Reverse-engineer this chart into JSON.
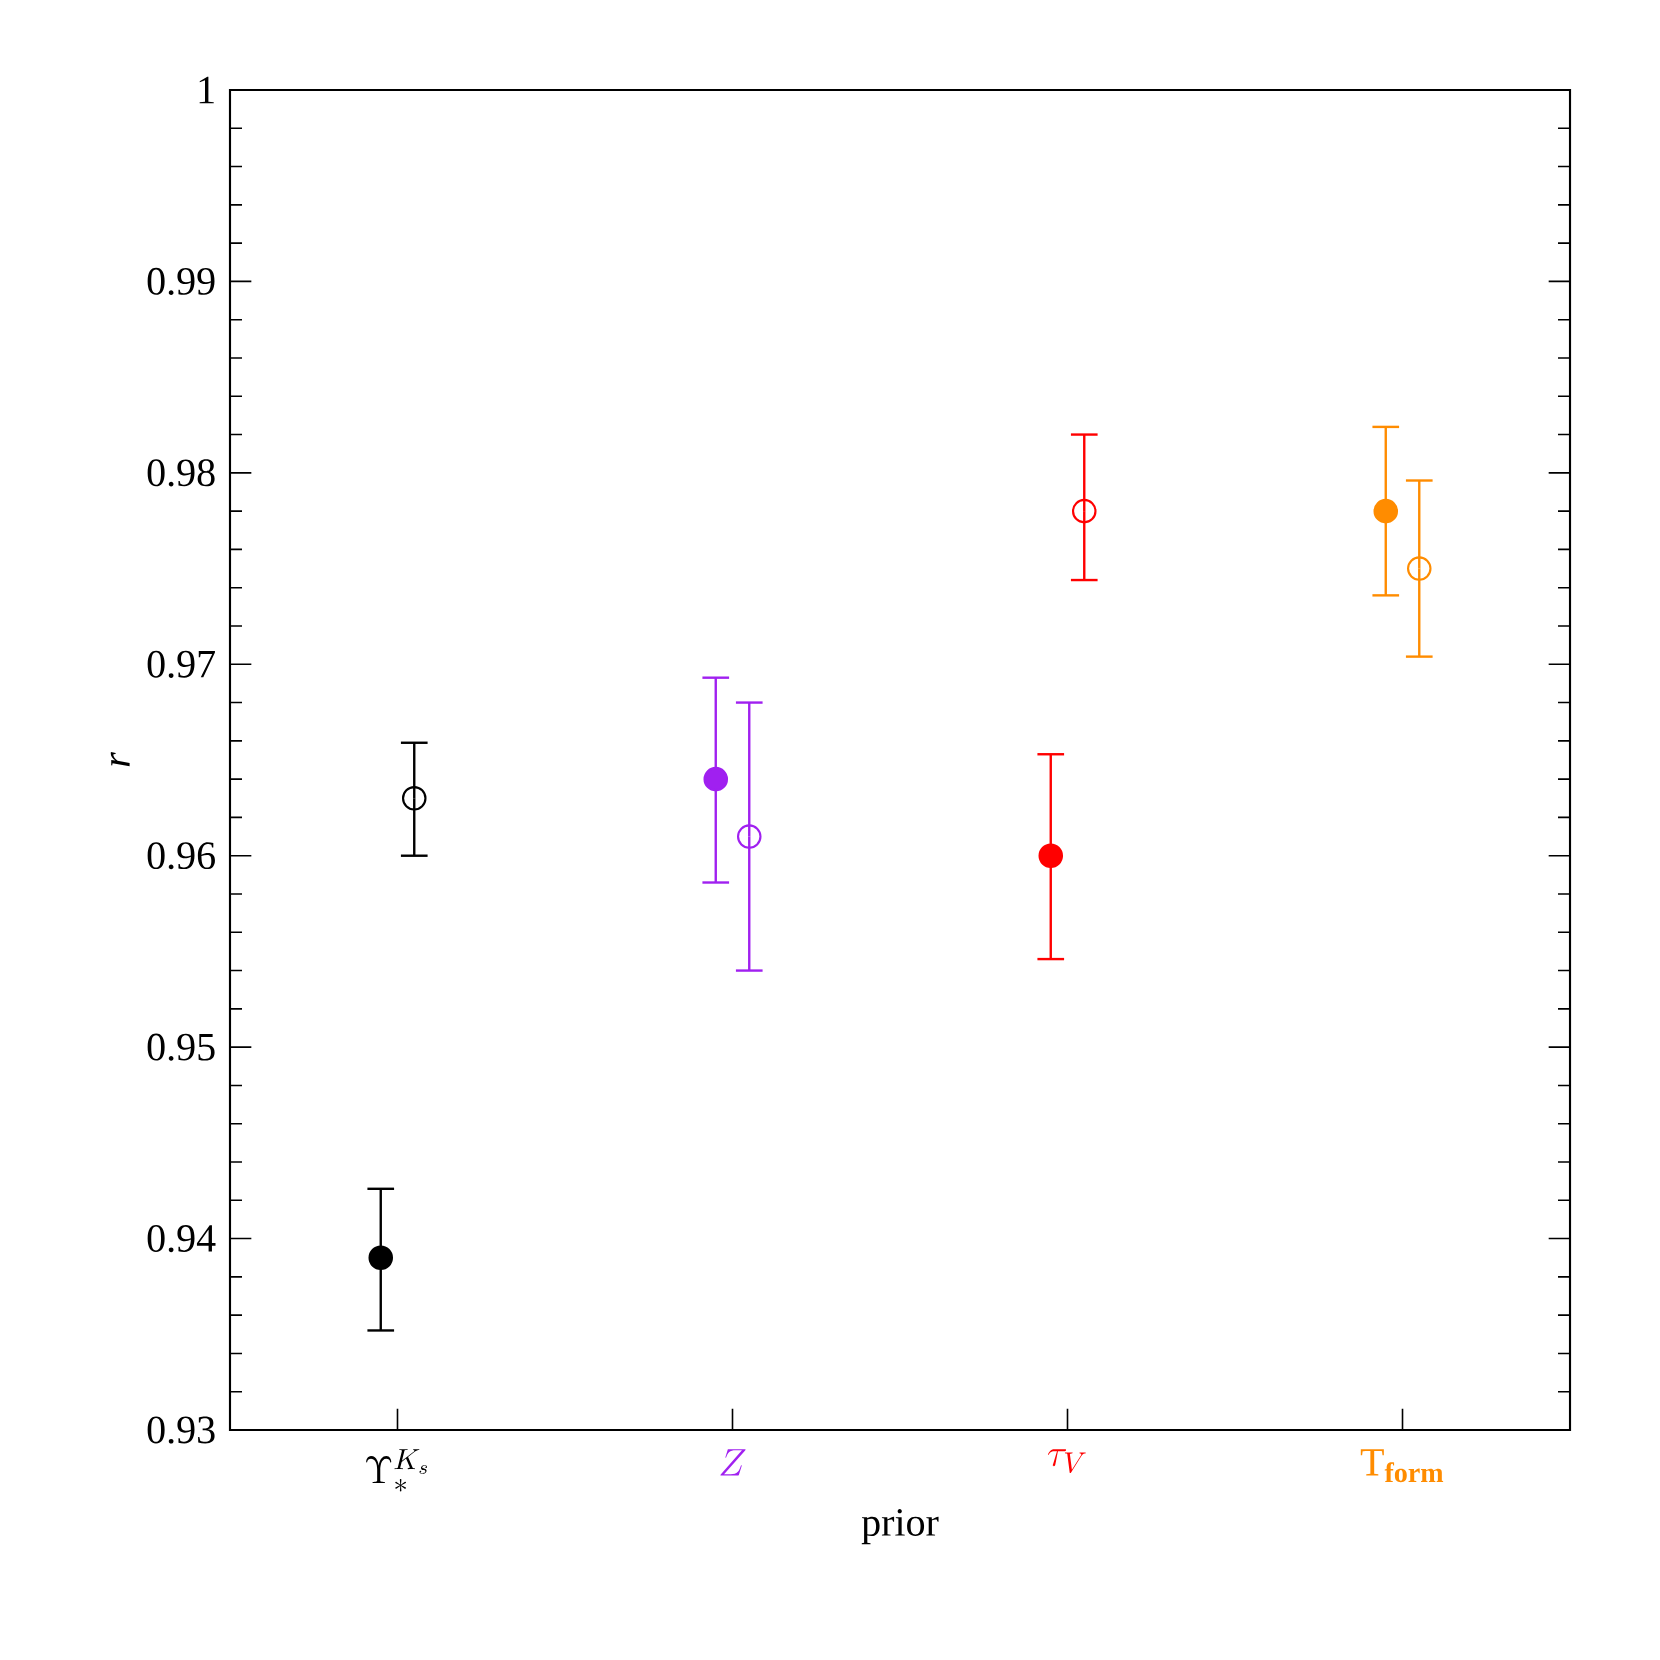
{
  "chart_data": {
    "type": "scatter",
    "xlabel": "prior",
    "ylabel": "r",
    "categories": [
      "\\Upsilon_{*}^{K_s}",
      "Z",
      "\\tau_{V}",
      "\\mathrm{T}_{\\mathbf{form}}"
    ],
    "ylim": [
      0.93,
      1
    ],
    "yticks": [
      0.93,
      0.94,
      0.95,
      0.96,
      0.97,
      0.98,
      0.99,
      1
    ],
    "marker": "circle",
    "series": [
      {
        "colors": [
          "#000000",
          "#a020f0",
          "#ff0000",
          "#ff8c00"
        ],
        "values": [
          0.939,
          0.964,
          0.96,
          0.978
        ],
        "errors": [
          [
            0.9352,
            0.9426
          ],
          [
            0.9586,
            0.9693
          ],
          [
            0.9546,
            0.9653
          ],
          [
            0.9736,
            0.9824
          ]
        ]
      },
      {
        "colors": [
          "#000000",
          "#a020f0",
          "#ff0000",
          "#ff8c00"
        ],
        "values": [
          0.963,
          0.961,
          0.978,
          0.975
        ],
        "errors": [
          [
            0.96,
            0.9659
          ],
          [
            0.954,
            0.968
          ],
          [
            0.9744,
            0.982
          ],
          [
            0.9704,
            0.9796
          ]
        ]
      }
    ]
  }
}
